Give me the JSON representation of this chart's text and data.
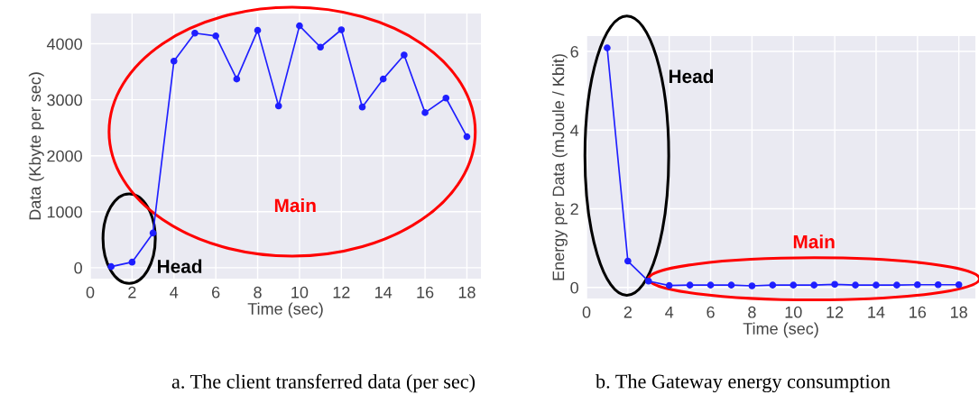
{
  "chart_data": [
    {
      "type": "line",
      "xlabel": "Time (sec)",
      "ylabel": "Data (Kbyte per sec)",
      "x": [
        1,
        2,
        3,
        4,
        5,
        6,
        7,
        8,
        9,
        10,
        11,
        12,
        13,
        14,
        15,
        16,
        17,
        18
      ],
      "series": [
        {
          "color": "#1f1fff",
          "values": [
            20,
            100,
            620,
            3690,
            4190,
            4140,
            3370,
            4240,
            2890,
            4320,
            3940,
            4250,
            2870,
            3370,
            3800,
            2770,
            3030,
            2340
          ]
        }
      ],
      "xlim": [
        0,
        18.67
      ],
      "xticks": [
        0,
        2,
        4,
        6,
        8,
        10,
        12,
        14,
        16,
        18
      ],
      "ylim": [
        -195,
        4540
      ],
      "yticks": [
        0,
        1000,
        2000,
        3000,
        4000
      ],
      "grid": true,
      "marker": "circle",
      "line_style": "solid",
      "annotations": [
        "Head",
        "Main",
        "a. The client transferred data (per sec)"
      ]
    },
    {
      "type": "line",
      "xlabel": "Time (sec)",
      "ylabel": "Energy per Data (mJoule / Kbit)",
      "x": [
        1,
        2,
        3,
        4,
        5,
        6,
        7,
        8,
        9,
        10,
        11,
        12,
        13,
        14,
        15,
        16,
        17,
        18
      ],
      "series": [
        {
          "color": "#1f1fff",
          "values": [
            6.09,
            0.67,
            0.16,
            0.05,
            0.06,
            0.06,
            0.06,
            0.04,
            0.06,
            0.06,
            0.06,
            0.08,
            0.06,
            0.06,
            0.06,
            0.07,
            0.07,
            0.07
          ]
        }
      ],
      "xlim": [
        0,
        18.8
      ],
      "xticks": [
        0,
        2,
        4,
        6,
        8,
        10,
        12,
        14,
        16,
        18
      ],
      "ylim": [
        -0.28,
        6.39
      ],
      "yticks": [
        0,
        2,
        4,
        6
      ],
      "grid": true,
      "marker": "circle",
      "line_style": "solid",
      "annotations": [
        "Head",
        "Main",
        "b. The Gateway energy consumption"
      ]
    }
  ]
}
